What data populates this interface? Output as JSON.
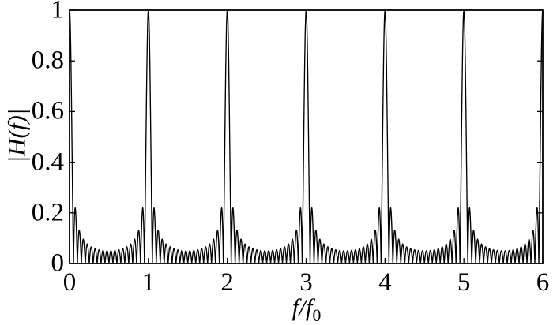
{
  "figure": {
    "background_color": "#ffffff",
    "line_color": "#000000",
    "text_color": "#000000"
  },
  "chart_data": {
    "type": "line",
    "title": "",
    "xlabel": "f/f0",
    "xlabel_parts": {
      "main": "f/f",
      "sub": "0"
    },
    "ylabel": "|H(f)|",
    "xlim": [
      0,
      6
    ],
    "ylim": [
      0,
      1
    ],
    "x_ticks": [
      0,
      1,
      2,
      3,
      4,
      5,
      6
    ],
    "x_tick_labels": [
      "0",
      "1",
      "2",
      "3",
      "4",
      "5",
      "6"
    ],
    "y_ticks": [
      0,
      0.2,
      0.4,
      0.6,
      0.8,
      1
    ],
    "y_tick_labels": [
      "0",
      "0.2",
      "0.4",
      "0.6",
      "0.8",
      "1"
    ],
    "grid": false,
    "legend": false,
    "box": true,
    "tick_direction": "in",
    "series": [
      {
        "name": "|H(f)|",
        "description": "Periodic comb magnitude response (Dirichlet kernel): y = |sin(N*pi*x) / (N*sin(pi*x))| with x = f/f0",
        "N": 20,
        "peak_positions": [
          0,
          1,
          2,
          3,
          4,
          5,
          6
        ],
        "peak_value": 1,
        "first_sidelobe_level": 0.22,
        "second_sidelobe_level": 0.13,
        "mid_valley_envelope": 0.05,
        "samples_per_unit": 500,
        "color": "#000000"
      }
    ]
  }
}
